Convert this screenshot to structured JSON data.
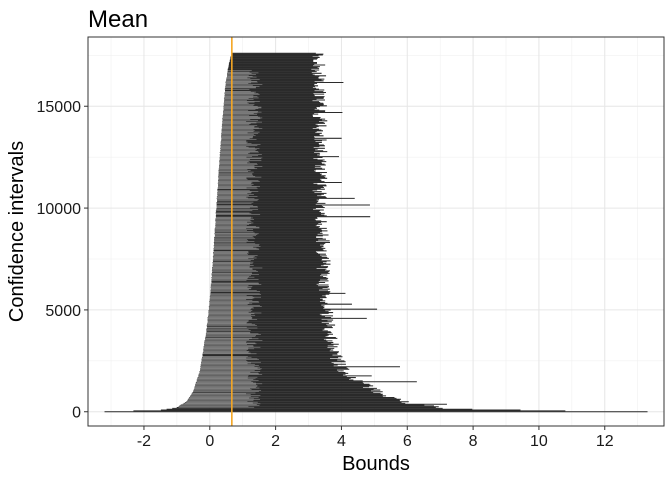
{
  "chart_data": {
    "type": "interval",
    "title": "Mean",
    "xlabel": "Bounds",
    "ylabel": "Confidence intervals",
    "xlim": [
      -3.7,
      13.8
    ],
    "ylim": [
      -700,
      18400
    ],
    "x_ticks": [
      -2,
      0,
      2,
      4,
      6,
      8,
      10,
      12
    ],
    "y_ticks": [
      0,
      5000,
      10000,
      15000
    ],
    "grid": true,
    "reference_line": {
      "x": 0.67,
      "color": "#f5a623"
    },
    "interval_color": "#2b2b2b",
    "n_intervals": 17600,
    "lower_bound_profile": [
      {
        "y": 0,
        "x": -3.2
      },
      {
        "y": 80,
        "x": -1.5
      },
      {
        "y": 200,
        "x": -1.0
      },
      {
        "y": 500,
        "x": -0.7
      },
      {
        "y": 1000,
        "x": -0.5
      },
      {
        "y": 2000,
        "x": -0.3
      },
      {
        "y": 3000,
        "x": -0.2
      },
      {
        "y": 4000,
        "x": -0.1
      },
      {
        "y": 5000,
        "x": -0.03
      },
      {
        "y": 6000,
        "x": 0.03
      },
      {
        "y": 8000,
        "x": 0.12
      },
      {
        "y": 10000,
        "x": 0.2
      },
      {
        "y": 12000,
        "x": 0.28
      },
      {
        "y": 14000,
        "x": 0.37
      },
      {
        "y": 16000,
        "x": 0.47
      },
      {
        "y": 17000,
        "x": 0.57
      },
      {
        "y": 17600,
        "x": 0.67
      }
    ],
    "upper_bound_profile": [
      {
        "y": 0,
        "x": 13.3
      },
      {
        "y": 50,
        "x": 10.1
      },
      {
        "y": 150,
        "x": 7.3
      },
      {
        "y": 400,
        "x": 6.0
      },
      {
        "y": 1000,
        "x": 5.0
      },
      {
        "y": 2000,
        "x": 4.0
      },
      {
        "y": 3000,
        "x": 3.7
      },
      {
        "y": 4000,
        "x": 3.6
      },
      {
        "y": 5000,
        "x": 3.5
      },
      {
        "y": 6000,
        "x": 3.4
      },
      {
        "y": 8000,
        "x": 3.4
      },
      {
        "y": 10000,
        "x": 3.3
      },
      {
        "y": 12000,
        "x": 3.3
      },
      {
        "y": 14000,
        "x": 3.3
      },
      {
        "y": 16000,
        "x": 3.3
      },
      {
        "y": 17600,
        "x": 3.2
      }
    ]
  }
}
